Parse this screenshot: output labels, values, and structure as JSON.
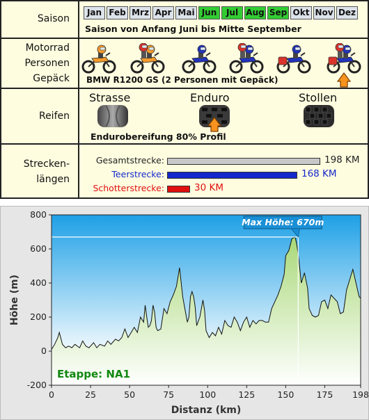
{
  "season": {
    "label": "Saison",
    "months": [
      {
        "name": "Jan",
        "active": false
      },
      {
        "name": "Feb",
        "active": false
      },
      {
        "name": "Mrz",
        "active": false
      },
      {
        "name": "Apr",
        "active": false
      },
      {
        "name": "Mai",
        "active": false
      },
      {
        "name": "Jun",
        "active": true
      },
      {
        "name": "Jul",
        "active": true
      },
      {
        "name": "Aug",
        "active": true
      },
      {
        "name": "Sep",
        "active": true
      },
      {
        "name": "Okt",
        "active": false
      },
      {
        "name": "Nov",
        "active": false
      },
      {
        "name": "Dez",
        "active": false
      }
    ],
    "text": "Saison von Anfang Juni bis Mitte September"
  },
  "vehicle": {
    "label_lines": [
      "Motorrad",
      "Personen",
      "Gepäck"
    ],
    "bikes": [
      {
        "icon": "enduro-bike-one-rider-icon",
        "selected": false
      },
      {
        "icon": "enduro-bike-two-riders-icon",
        "selected": false
      },
      {
        "icon": "touring-bike-one-rider-icon",
        "selected": false
      },
      {
        "icon": "touring-bike-two-riders-icon",
        "selected": false
      },
      {
        "icon": "touring-bike-one-rider-luggage-icon",
        "selected": false
      },
      {
        "icon": "touring-bike-two-riders-luggage-icon",
        "selected": true
      }
    ],
    "text": "BMW R1200 GS  (2 Personen mit Gepäck)"
  },
  "tires": {
    "label": "Reifen",
    "options": [
      {
        "name": "Strasse",
        "selected": false
      },
      {
        "name": "Enduro",
        "selected": true
      },
      {
        "name": "Stollen",
        "selected": false
      }
    ],
    "text": "Endurobereifung 80% Profil"
  },
  "distances": {
    "label_lines": [
      "Strecken-",
      "längen"
    ],
    "items": [
      {
        "name": "Gesamtstrecke:",
        "value": "198 KM",
        "km": 198,
        "color": "#222222",
        "bar": "#c8c8c8"
      },
      {
        "name": "Teerstrecke:",
        "value": "168 KM",
        "km": 168,
        "color": "#1428cc",
        "bar": "#1428cc"
      },
      {
        "name": "Schotterstrecke:",
        "value": "30 KM",
        "km": 30,
        "color": "#e01010",
        "bar": "#e01010"
      }
    ]
  },
  "elevation": {
    "stage_label": "Etappe: NA1",
    "max_label": "Max Höhe: 670m",
    "xlabel": "Distanz  (km)",
    "ylabel": "Höhe  (m)"
  },
  "colors": {
    "fill_top": "#a8d878",
    "fill_bottom": "#ffffff",
    "sky_top": "#1ea0e6",
    "sky_bottom": "#ffffff",
    "stage": "#118811"
  },
  "chart_data": {
    "type": "area",
    "xlabel": "Distanz  (km)",
    "ylabel": "Höhe  (m)",
    "xlim": [
      0,
      198
    ],
    "ylim": [
      -200,
      800
    ],
    "xticks": [
      0,
      25,
      50,
      75,
      100,
      125,
      150,
      175,
      198
    ],
    "yticks": [
      -200,
      0,
      200,
      400,
      600,
      800
    ],
    "annotation": {
      "text": "Max Höhe: 670m",
      "x": 158,
      "y": 670
    },
    "x": [
      0,
      2,
      4,
      5,
      7,
      9,
      11,
      13,
      15,
      18,
      20,
      22,
      24,
      27,
      29,
      31,
      34,
      36,
      38,
      41,
      43,
      45,
      47,
      49,
      51,
      53,
      55,
      57,
      59,
      60,
      61,
      62,
      63,
      64,
      65,
      66,
      67,
      68,
      70,
      72,
      74,
      76,
      78,
      80,
      82,
      84,
      86,
      87,
      88,
      89,
      90,
      91,
      92,
      93,
      95,
      97,
      98,
      99,
      101,
      103,
      105,
      107,
      109,
      111,
      113,
      115,
      117,
      119,
      121,
      123,
      125,
      127,
      129,
      131,
      133,
      135,
      137,
      139,
      141,
      143,
      145,
      147,
      149,
      150,
      152,
      154,
      156,
      157,
      158,
      160,
      162,
      164,
      165,
      167,
      169,
      171,
      173,
      175,
      177,
      179,
      181,
      183,
      185,
      187,
      189,
      191,
      193,
      195,
      197,
      198
    ],
    "y": [
      10,
      40,
      80,
      110,
      40,
      20,
      30,
      20,
      40,
      20,
      60,
      30,
      20,
      50,
      20,
      40,
      30,
      60,
      40,
      70,
      60,
      80,
      130,
      80,
      110,
      140,
      110,
      200,
      170,
      270,
      200,
      140,
      150,
      180,
      270,
      230,
      140,
      120,
      130,
      250,
      220,
      290,
      330,
      380,
      490,
      320,
      220,
      170,
      200,
      320,
      350,
      320,
      260,
      150,
      200,
      300,
      240,
      120,
      80,
      110,
      90,
      140,
      100,
      180,
      150,
      140,
      200,
      170,
      120,
      170,
      200,
      140,
      180,
      160,
      180,
      180,
      170,
      170,
      250,
      290,
      330,
      380,
      450,
      560,
      590,
      660,
      670,
      630,
      570,
      400,
      460,
      370,
      250,
      210,
      200,
      210,
      290,
      300,
      250,
      330,
      310,
      290,
      220,
      230,
      360,
      420,
      480,
      400,
      320,
      310
    ]
  }
}
